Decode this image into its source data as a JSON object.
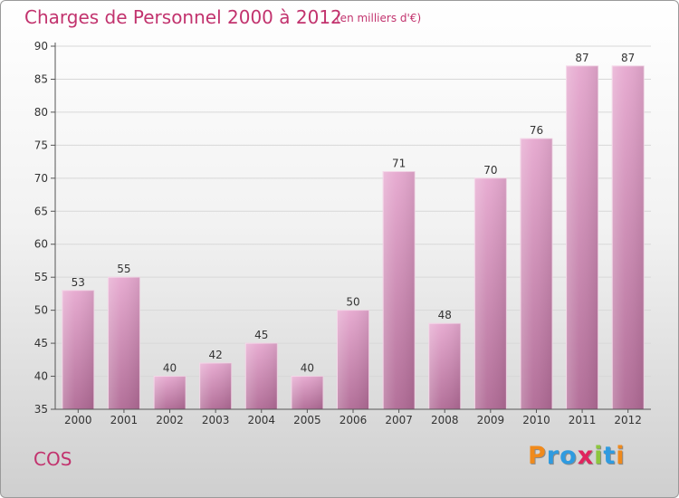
{
  "title": "Charges de Personnel 2000 à 2012",
  "subtitle": "(en milliers d'€)",
  "place": "COS",
  "logo": {
    "text": "Proxiti",
    "letters": [
      {
        "ch": "P",
        "color": "#f08a1c"
      },
      {
        "ch": "r",
        "color": "#2f9be0"
      },
      {
        "ch": "o",
        "color": "#2f9be0"
      },
      {
        "ch": "x",
        "color": "#e0245e"
      },
      {
        "ch": "i",
        "color": "#8dc63f"
      },
      {
        "ch": "t",
        "color": "#2f9be0"
      },
      {
        "ch": "i",
        "color": "#f08a1c"
      }
    ]
  },
  "chart_data": {
    "type": "bar",
    "title": "Charges de Personnel 2000 à 2012",
    "subtitle": "(en milliers d'€)",
    "categories": [
      "2000",
      "2001",
      "2002",
      "2003",
      "2004",
      "2005",
      "2006",
      "2007",
      "2008",
      "2009",
      "2010",
      "2011",
      "2012"
    ],
    "values": [
      53,
      55,
      40,
      42,
      45,
      40,
      50,
      71,
      48,
      70,
      76,
      87,
      87
    ],
    "ylim": [
      35,
      90
    ],
    "yticks": [
      35,
      40,
      45,
      50,
      55,
      60,
      65,
      70,
      75,
      80,
      85,
      90
    ],
    "grid": true,
    "bar_color_top": "#e6a8cf",
    "bar_color_bottom": "#b06a95",
    "grid_color": "#d8d8d8"
  }
}
